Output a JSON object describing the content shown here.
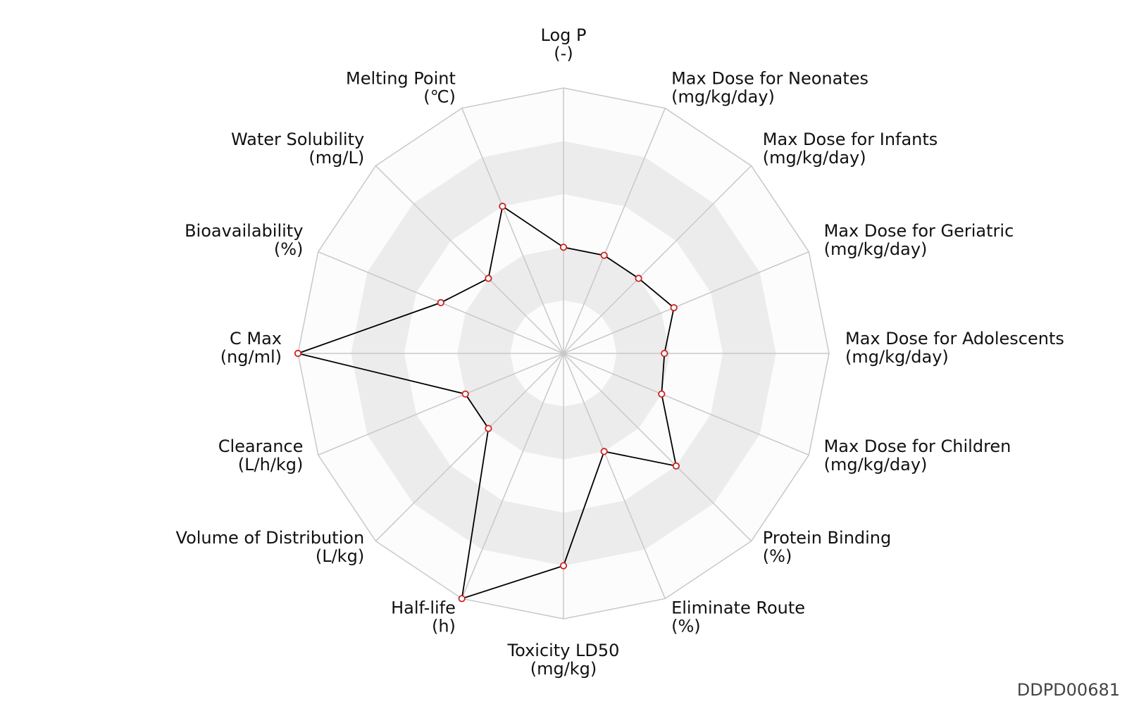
{
  "footer_id": "DDPD00681",
  "colors": {
    "band_light": "#fcfcfc",
    "band_dark": "#ececec",
    "grid_line": "#c8c8c8",
    "series_line": "#000000",
    "marker_stroke": "#cc2222",
    "marker_fill": "#ffffff"
  },
  "chart_data": {
    "type": "radar",
    "title": "",
    "rings": 5,
    "range": [
      0,
      1
    ],
    "grid": true,
    "axes": [
      {
        "name": "Log P",
        "unit": "(-)"
      },
      {
        "name": "Max Dose for Neonates",
        "unit": "(mg/kg/day)"
      },
      {
        "name": "Max Dose for Infants",
        "unit": "(mg/kg/day)"
      },
      {
        "name": "Max Dose for Geriatric",
        "unit": "(mg/kg/day)"
      },
      {
        "name": "Max Dose for Adolescents",
        "unit": "(mg/kg/day)"
      },
      {
        "name": "Max Dose for Children",
        "unit": "(mg/kg/day)"
      },
      {
        "name": "Protein Binding",
        "unit": "(%)"
      },
      {
        "name": "Eliminate Route",
        "unit": "(%)"
      },
      {
        "name": "Toxicity LD50",
        "unit": "(mg/kg)"
      },
      {
        "name": "Half-life",
        "unit": "(h)"
      },
      {
        "name": "Volume of Distribution",
        "unit": "(L/kg)"
      },
      {
        "name": "Clearance",
        "unit": "(L/h/kg)"
      },
      {
        "name": "C Max",
        "unit": "(ng/ml)"
      },
      {
        "name": "Bioavailability",
        "unit": "(%)"
      },
      {
        "name": "Water Solubility",
        "unit": "(mg/L)"
      },
      {
        "name": "Melting Point",
        "unit": "(℃)"
      }
    ],
    "series": [
      {
        "values": [
          0.4,
          0.4,
          0.4,
          0.45,
          0.38,
          0.4,
          0.6,
          0.4,
          0.8,
          1.0,
          0.4,
          0.4,
          1.0,
          0.5,
          0.4,
          0.6
        ]
      }
    ]
  }
}
